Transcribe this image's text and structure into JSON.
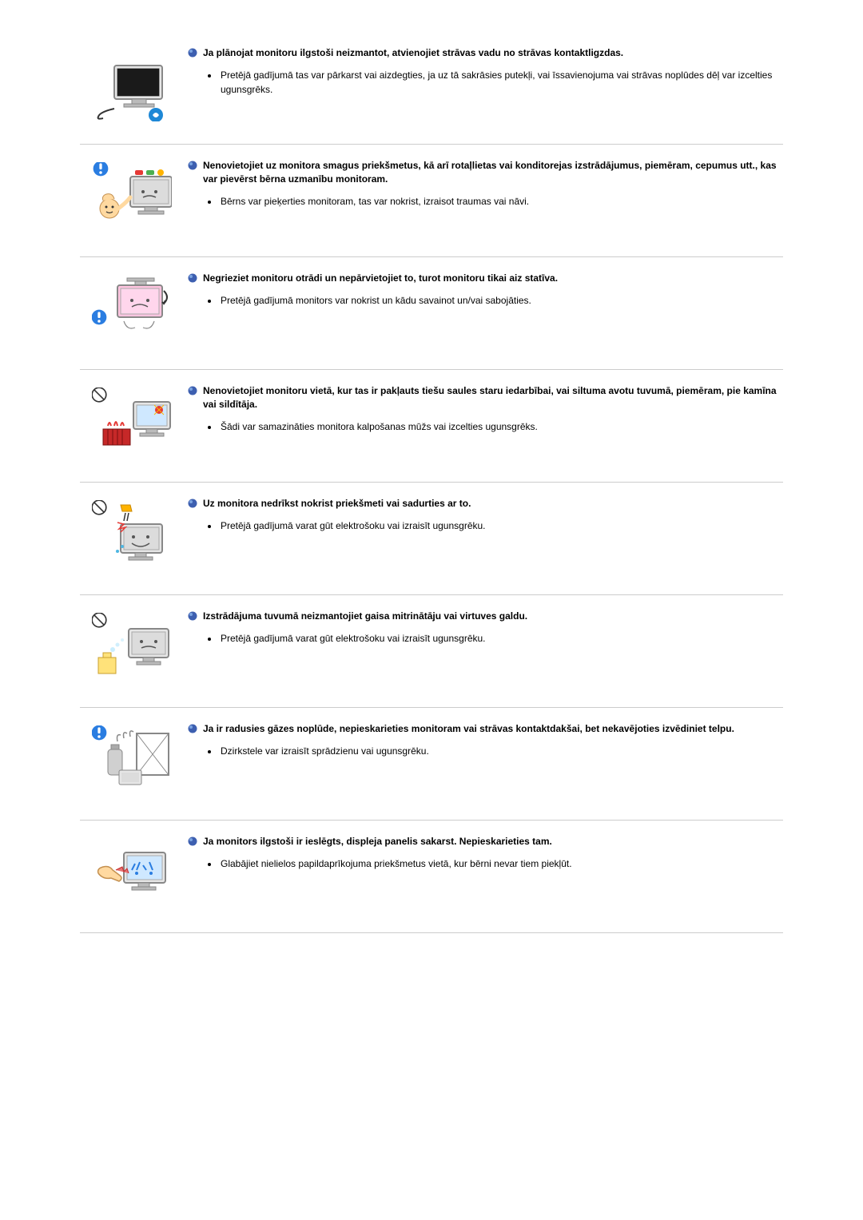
{
  "bullet_color": "#3d5fb0",
  "bullet_highlight": "#7aa3e0",
  "sections": [
    {
      "heading": "Ja plānojat monitoru ilgstoši neizmantot, atvienojiet strāvas vadu no strāvas kontaktligzdas.",
      "detail": "Pretējā gadījumā tas var pārkarst vai aizdegties, ja uz tā sakrāsies putekļi, vai īssavienojuma vai strāvas noplūdes dēļ var izcelties ugunsgrēks.",
      "illustration": "monitor-unplug"
    },
    {
      "heading": "Nenovietojiet uz monitora smagus priekšmetus, kā arī rotaļlietas vai konditorejas izstrādājumus, piemēram, cepumus utt., kas var pievērst bērna uzmanību monitoram.",
      "detail": "Bērns var pieķerties monitoram, tas var nokrist, izraisot traumas vai nāvi.",
      "illustration": "child-monitor"
    },
    {
      "heading": "Negrieziet monitoru otrādi un nepārvietojiet to, turot monitoru tikai aiz statīva.",
      "detail": "Pretējā gadījumā monitors var nokrist un kādu savainot un/vai sabojāties.",
      "illustration": "upside-down-monitor"
    },
    {
      "heading": "Nenovietojiet monitoru vietā, kur tas ir pakļauts tiešu saules staru iedarbībai, vai siltuma avotu tuvumā, piemēram, pie kamīna vai sildītāja.",
      "detail": "Šādi var samazināties monitora kalpošanas mūžs vai izcelties ugunsgrēks.",
      "illustration": "heat-source"
    },
    {
      "heading": "Uz monitora nedrīkst nokrist priekšmeti vai sadurties ar to.",
      "detail": "Pretējā gadījumā varat gūt elektrošoku vai izraisīt ugunsgrēku.",
      "illustration": "falling-objects"
    },
    {
      "heading": "Izstrādājuma tuvumā neizmantojiet gaisa mitrinātāju vai virtuves galdu.",
      "detail": "Pretējā gadījumā varat gūt elektrošoku vai izraisīt ugunsgrēku.",
      "illustration": "humidifier"
    },
    {
      "heading": "Ja ir radusies gāzes noplūde, nepieskarieties monitoram vai strāvas kontaktdakšai, bet nekavējoties izvēdiniet telpu.",
      "detail": "Dzirkstele var izraisīt sprādzienu vai ugunsgrēku.",
      "illustration": "gas-leak"
    },
    {
      "heading": "Ja monitors ilgstoši ir ieslēgts, displeja panelis sakarst. Nepieskarieties tam.",
      "detail": "Glabājiet nielielos papildaprīkojuma priekšmetus vietā, kur bērni nevar tiem piekļūt.",
      "illustration": "hot-panel"
    }
  ]
}
